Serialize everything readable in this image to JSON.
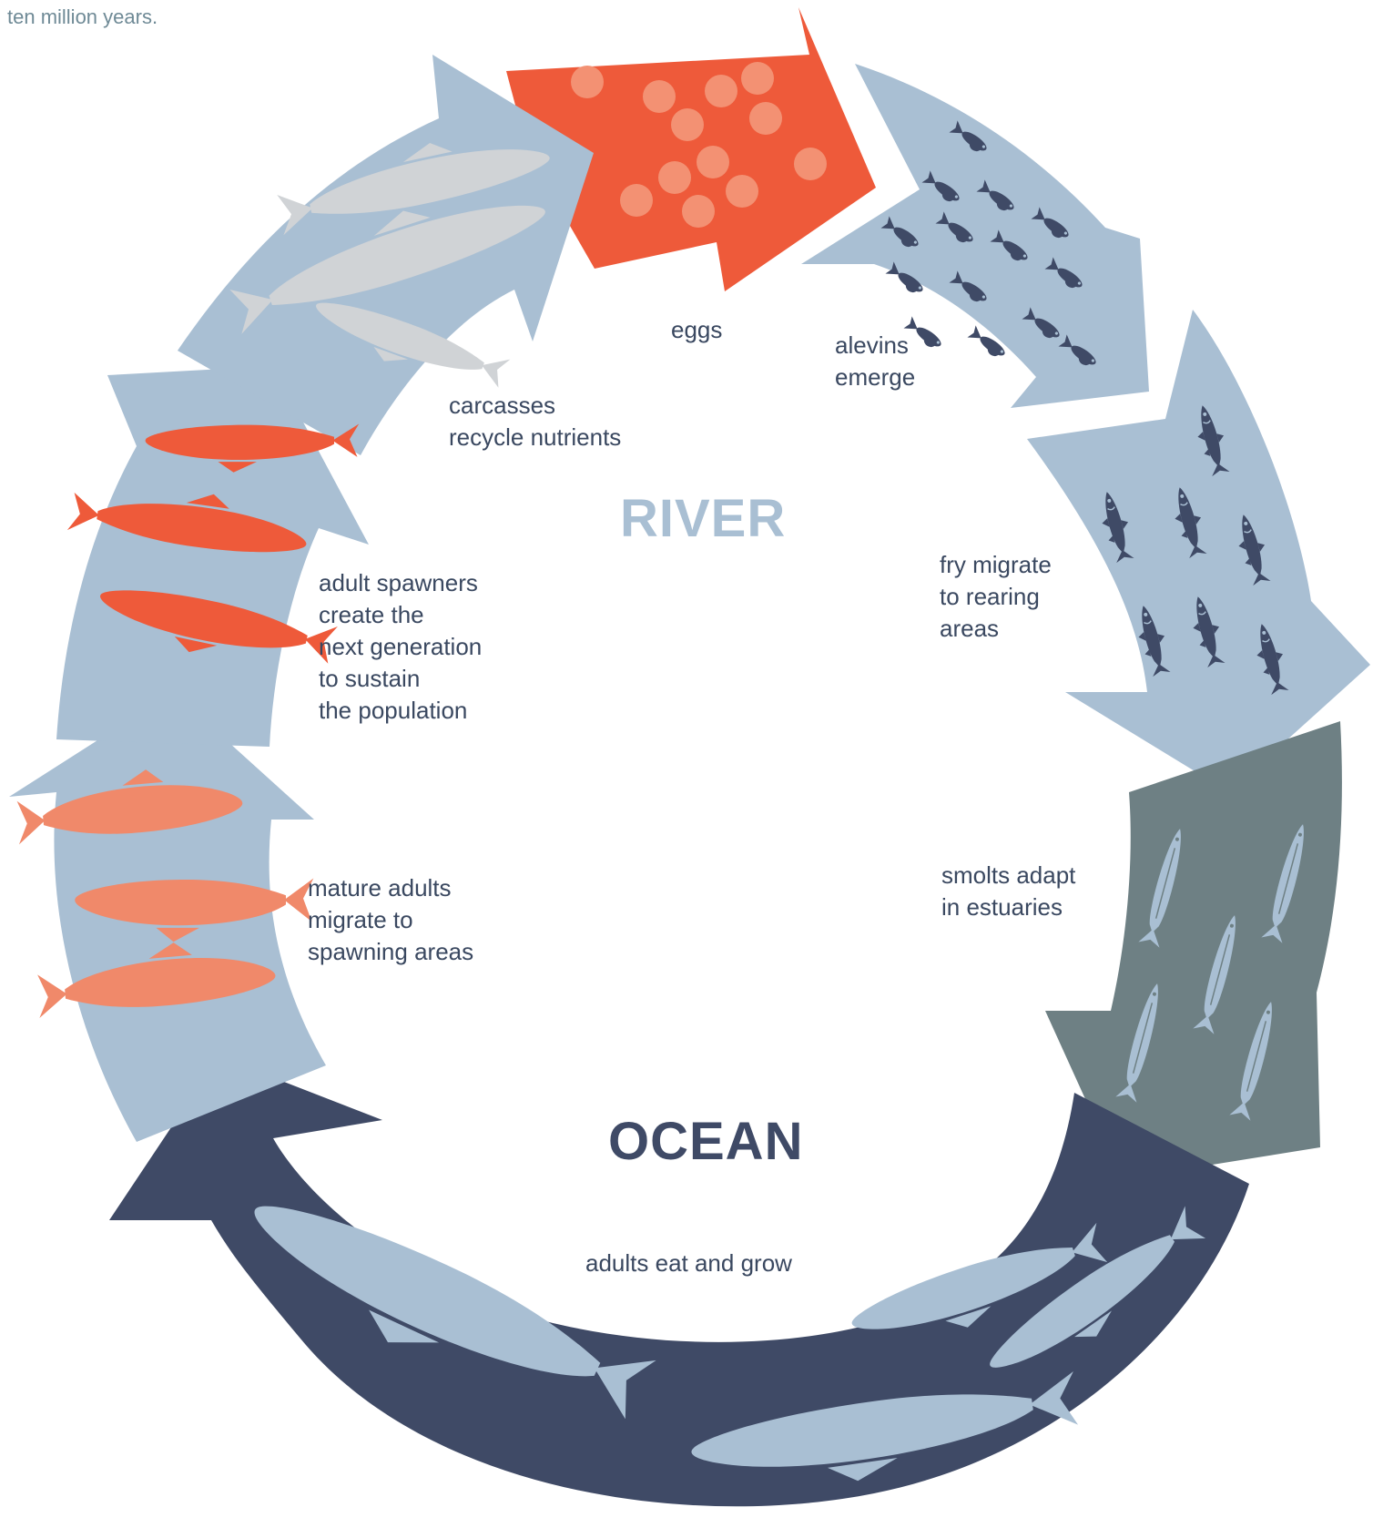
{
  "intro_text": "ten million years.",
  "zones": {
    "river": "RIVER",
    "ocean": "OCEAN"
  },
  "stages": {
    "eggs": "eggs",
    "alevins": "alevins\nemerge",
    "fry": "fry migrate\nto rearing\nareas",
    "smolts": "smolts adapt\nin estuaries",
    "adults_ocean": "adults eat and grow",
    "mature": "mature adults\nmigrate to\nspawning areas",
    "spawners": "adult spawners\ncreate the\nnext generation\nto sustain\nthe population",
    "carcasses": "carcasses\nrecycle nutrients"
  },
  "colors": {
    "river_label": "#a9bfd3",
    "ocean_label": "#3f4a66",
    "eggs_arrow": "#ee5a3a",
    "egg_dot": "#f39173",
    "light_blue_arrow": "#a9bfd3",
    "smolt_arrow": "#6e8084",
    "ocean_arrow": "#3f4a66",
    "salmon_light": "#f0896a",
    "salmon_red": "#ee5a3a",
    "carcass_grey": "#d0d3d6",
    "juvenile_dark": "#3f4a66",
    "ocean_fish": "#a9bfd3"
  },
  "icons": [
    "egg-icon",
    "alevin-icon",
    "fry-icon",
    "smolt-icon",
    "ocean-salmon-icon",
    "mature-salmon-icon",
    "spawner-salmon-icon",
    "carcass-icon"
  ]
}
